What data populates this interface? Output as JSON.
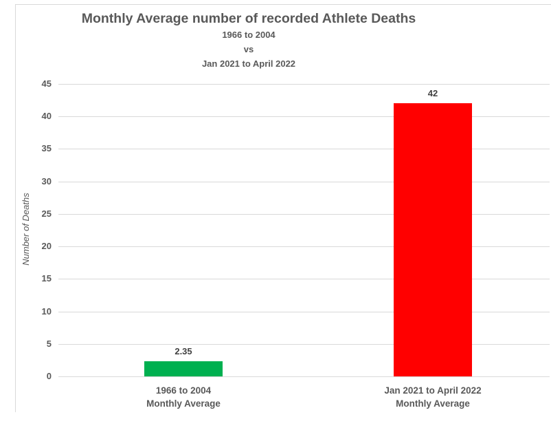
{
  "chart_data": {
    "type": "bar",
    "title": "Monthly Average number of recorded Athlete Deaths",
    "subtitle_lines": [
      "1966 to 2004",
      "vs",
      "Jan 2021 to April 2022"
    ],
    "ylabel": "Number of Deaths",
    "xlabel": "",
    "categories": [
      {
        "line1": "1966 to 2004",
        "line2": "Monthly Average"
      },
      {
        "line1": "Jan 2021 to April 2022",
        "line2": "Monthly Average"
      }
    ],
    "values": [
      2.35,
      42
    ],
    "value_labels": [
      "2.35",
      "42"
    ],
    "bar_colors": [
      "#00B050",
      "#FF0000"
    ],
    "ylim": [
      0,
      45
    ],
    "yticks": [
      0,
      5,
      10,
      15,
      20,
      25,
      30,
      35,
      40,
      45
    ],
    "grid": true,
    "legend": "none",
    "colors": {
      "gridline": "#D9D9D9",
      "frame_border": "#D9D9D9",
      "title_text": "#595959",
      "axis_text": "#595959",
      "value_label_text": "#404040",
      "background": "#FFFFFF"
    }
  }
}
